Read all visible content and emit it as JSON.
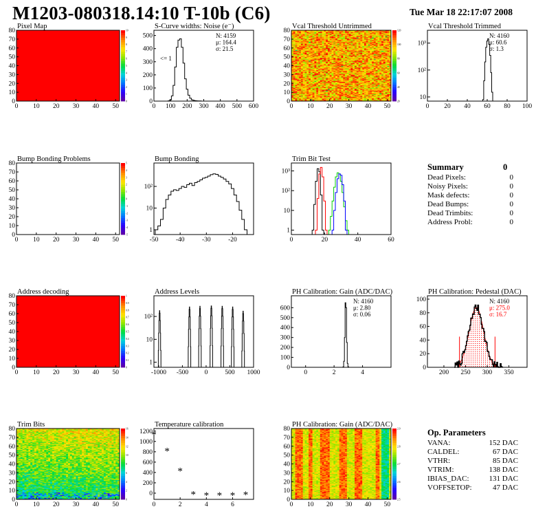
{
  "header": {
    "title": "M1203-080318.14:10 T-10b (C6)",
    "timestamp": "Tue Mar 18 22:17:07 2008"
  },
  "colors": {
    "red": "#ff0000",
    "histogram_line": "#000000",
    "trim_red": "#ff0000",
    "trim_green": "#00cc00",
    "trim_blue": "#0000ff",
    "pedestal_fit": "#ff0000"
  },
  "chart_data": [
    {
      "id": "pixel_map",
      "type": "heatmap",
      "title": "Pixel Map",
      "x_ticks": [
        "0",
        "10",
        "20",
        "30",
        "40",
        "50"
      ],
      "y_ticks": [
        "0",
        "10",
        "20",
        "30",
        "40",
        "50",
        "60",
        "70",
        "80"
      ],
      "xlim": [
        0,
        52
      ],
      "ylim": [
        0,
        80
      ],
      "fill": "uniform-max",
      "z_ticks": [
        "0",
        "1",
        "2",
        "3",
        "4",
        "5",
        "6",
        "7",
        "8",
        "9",
        "10"
      ]
    },
    {
      "id": "scurve",
      "type": "histogram",
      "title": "S-Curve widths: Noise (e⁻)",
      "x_ticks": [
        "0",
        "100",
        "200",
        "300",
        "400",
        "500",
        "600"
      ],
      "y_ticks": [
        "0",
        "100",
        "200",
        "300",
        "400",
        "500"
      ],
      "xlim": [
        0,
        600
      ],
      "ylim": [
        0,
        540
      ],
      "stats": [
        "N: 4159",
        "μ: 164.4",
        "σ: 21.5"
      ],
      "annotation": "<= 1",
      "x": [
        90,
        100,
        110,
        120,
        130,
        140,
        150,
        160,
        170,
        180,
        190,
        200,
        210,
        220,
        230,
        240,
        250,
        260,
        270,
        280,
        290,
        300
      ],
      "y": [
        2,
        10,
        40,
        120,
        260,
        410,
        465,
        475,
        410,
        290,
        170,
        90,
        45,
        22,
        10,
        6,
        3,
        2,
        1,
        1,
        0,
        0
      ]
    },
    {
      "id": "vcal_untrimmed",
      "type": "heatmap",
      "title": "Vcal Threshold Untrimmed",
      "x_ticks": [
        "0",
        "10",
        "20",
        "30",
        "40",
        "50"
      ],
      "y_ticks": [
        "0",
        "10",
        "20",
        "30",
        "40",
        "50",
        "60",
        "70",
        "80"
      ],
      "xlim": [
        0,
        52
      ],
      "ylim": [
        0,
        80
      ],
      "fill": "noisy-high",
      "z_ticks": [
        "20",
        "40",
        "60",
        "80",
        "100",
        "120"
      ]
    },
    {
      "id": "vcal_trimmed",
      "type": "histogram",
      "title": "Vcal Threshold Trimmed",
      "log_y": true,
      "x_ticks": [
        "0",
        "20",
        "40",
        "60",
        "80",
        "100"
      ],
      "y_tick_labels": [
        "10",
        "10²",
        "10³"
      ],
      "y_tick_values": [
        10,
        100,
        1000
      ],
      "xlim": [
        0,
        100
      ],
      "ylim": [
        7,
        3000
      ],
      "stats": [
        "N: 4160",
        "μ: 60.6",
        "σ:  1.3"
      ],
      "x": [
        55,
        56,
        57,
        58,
        59,
        60,
        61,
        62,
        63,
        64,
        65,
        66
      ],
      "y": [
        0,
        8,
        40,
        200,
        700,
        1200,
        1450,
        900,
        350,
        80,
        15,
        0
      ]
    },
    {
      "id": "bump_problems",
      "type": "heatmap",
      "title": "Bump Bonding Problems",
      "x_ticks": [
        "0",
        "10",
        "20",
        "30",
        "40",
        "50"
      ],
      "y_ticks": [
        "0",
        "10",
        "20",
        "30",
        "40",
        "50",
        "60",
        "70",
        "80"
      ],
      "xlim": [
        0,
        52
      ],
      "ylim": [
        0,
        80
      ],
      "fill": "empty",
      "z_ticks": [
        "-5",
        "-4",
        "-3",
        "-2",
        "-1",
        "0",
        "1",
        "2",
        "3",
        "4",
        "5"
      ]
    },
    {
      "id": "bump_bonding",
      "type": "histogram",
      "title": "Bump Bonding",
      "log_y": true,
      "x_ticks": [
        "-50",
        "-40",
        "-30",
        "-20"
      ],
      "y_tick_labels": [
        "1",
        "10",
        "10²"
      ],
      "y_tick_values": [
        1,
        10,
        100
      ],
      "xlim": [
        -50,
        -12
      ],
      "ylim": [
        0.6,
        1200
      ],
      "x": [
        -49,
        -48,
        -47,
        -46,
        -45,
        -44,
        -43,
        -42,
        -41,
        -40,
        -39,
        -38,
        -37,
        -36,
        -35,
        -34,
        -33,
        -32,
        -31,
        -30,
        -29,
        -28,
        -27,
        -26,
        -25,
        -24,
        -23,
        -22,
        -21,
        -20,
        -19,
        -18,
        -17,
        -16,
        -15
      ],
      "y": [
        1,
        1.5,
        3,
        10,
        25,
        40,
        60,
        70,
        65,
        80,
        100,
        90,
        120,
        140,
        110,
        150,
        170,
        200,
        240,
        260,
        300,
        350,
        380,
        360,
        300,
        260,
        220,
        170,
        130,
        80,
        40,
        20,
        8,
        3,
        1
      ]
    },
    {
      "id": "trim_bit_test",
      "type": "histogram",
      "title": "Trim Bit Test",
      "log_y": true,
      "x_ticks": [
        "0",
        "20",
        "40",
        "60"
      ],
      "y_tick_labels": [
        "1",
        "10",
        "10²",
        "10³"
      ],
      "y_tick_values": [
        1,
        10,
        100,
        1000
      ],
      "xlim": [
        0,
        60
      ],
      "ylim": [
        0.6,
        2500
      ],
      "series": [
        {
          "color": "#000000",
          "x": [
            13,
            14,
            15,
            16,
            17,
            18,
            19
          ],
          "y": [
            1,
            20,
            300,
            1300,
            900,
            60,
            1
          ]
        },
        {
          "color": "#ff0000",
          "x": [
            15,
            16,
            17,
            18,
            19,
            20,
            21
          ],
          "y": [
            1,
            40,
            700,
            1500,
            500,
            30,
            1
          ]
        },
        {
          "color": "#00cc00",
          "x": [
            23,
            24,
            25,
            26,
            27,
            28,
            29,
            30,
            31,
            32,
            33,
            34
          ],
          "y": [
            1,
            5,
            30,
            150,
            500,
            800,
            700,
            300,
            80,
            15,
            3,
            1
          ]
        },
        {
          "color": "#0000ff",
          "x": [
            25,
            26,
            27,
            28,
            29,
            30,
            31,
            32,
            33
          ],
          "y": [
            1,
            10,
            80,
            400,
            700,
            600,
            200,
            30,
            1
          ]
        }
      ]
    },
    {
      "id": "address_decoding",
      "type": "heatmap",
      "title": "Address decoding",
      "x_ticks": [
        "0",
        "10",
        "20",
        "30",
        "40",
        "50"
      ],
      "y_ticks": [
        "0",
        "10",
        "20",
        "30",
        "40",
        "50",
        "60",
        "70",
        "80"
      ],
      "xlim": [
        0,
        52
      ],
      "ylim": [
        0,
        80
      ],
      "fill": "uniform-max",
      "z_ticks": [
        "0",
        "0.1",
        "0.2",
        "0.3",
        "0.4",
        "0.5",
        "0.6",
        "0.7",
        "0.8",
        "0.9",
        "1"
      ]
    },
    {
      "id": "address_levels",
      "type": "histogram",
      "title": "Address Levels",
      "log_y": true,
      "x_ticks": [
        "-1000",
        "-500",
        "0",
        "500",
        "1000"
      ],
      "y_tick_labels": [
        "1",
        "10",
        "10²"
      ],
      "y_tick_values": [
        1,
        10,
        100
      ],
      "xlim": [
        -1100,
        1000
      ],
      "ylim": [
        0.6,
        800
      ],
      "peaks": [
        [
          -980,
          180
        ],
        [
          -350,
          260
        ],
        [
          -130,
          280
        ],
        [
          110,
          290
        ],
        [
          340,
          280
        ],
        [
          560,
          260
        ],
        [
          780,
          170
        ]
      ]
    },
    {
      "id": "ph_gain",
      "type": "histogram",
      "title": "PH Calibration: Gain (ADC/DAC)",
      "x_ticks": [
        "0",
        "2",
        "4"
      ],
      "y_ticks": [
        "0",
        "100",
        "200",
        "300",
        "400",
        "500",
        "600"
      ],
      "xlim": [
        -1,
        6
      ],
      "ylim": [
        0,
        720
      ],
      "stats": [
        "N: 4160",
        "μ: 2.80",
        "σ: 0.06"
      ],
      "x": [
        2.6,
        2.65,
        2.7,
        2.75,
        2.8,
        2.85,
        2.9,
        2.95,
        3.0,
        3.05
      ],
      "y": [
        0,
        5,
        60,
        300,
        650,
        600,
        250,
        40,
        5,
        0
      ]
    },
    {
      "id": "ph_pedestal",
      "type": "histogram",
      "title": "PH Calibration: Pedestal (DAC)",
      "x_ticks": [
        "200",
        "250",
        "300",
        "350"
      ],
      "y_ticks": [
        "0",
        "20",
        "40",
        "60",
        "80",
        "100"
      ],
      "xlim": [
        162,
        392
      ],
      "ylim": [
        0,
        105
      ],
      "stats": [
        {
          "text": "N: 4160",
          "color": "#000000"
        },
        {
          "text": "μ: 275.0",
          "color": "#ff0000"
        },
        {
          "text": "σ: 16.7",
          "color": "#ff0000"
        }
      ],
      "fit": {
        "mean": 275.0,
        "sigma": 16.7,
        "amp": 88,
        "range": [
          236,
          318
        ]
      },
      "noise_seed": 7
    },
    {
      "id": "trim_bits",
      "type": "heatmap",
      "title": "Trim Bits",
      "x_ticks": [
        "0",
        "10",
        "20",
        "30",
        "40",
        "50"
      ],
      "y_ticks": [
        "0",
        "10",
        "20",
        "30",
        "40",
        "50",
        "60",
        "70",
        "80"
      ],
      "xlim": [
        0,
        52
      ],
      "ylim": [
        0,
        80
      ],
      "fill": "trim-bits",
      "z_ticks": [
        "0",
        "2",
        "4",
        "6",
        "8",
        "10",
        "12",
        "14",
        "16"
      ]
    },
    {
      "id": "temperature",
      "type": "scatter",
      "title": "Temperature calibration",
      "x_ticks": [
        "0",
        "2",
        "4",
        "6"
      ],
      "y_ticks": [
        "0",
        "200",
        "400",
        "600",
        "800",
        "1000",
        "1200"
      ],
      "xlim": [
        0,
        7.6
      ],
      "ylim": [
        -120,
        1250
      ],
      "marker": "*",
      "x": [
        0,
        1,
        2,
        3,
        4,
        5,
        6,
        7
      ],
      "y": [
        1140,
        820,
        430,
        -20,
        -40,
        -40,
        -40,
        -30
      ]
    },
    {
      "id": "ph_gain_map",
      "type": "heatmap",
      "title": "PH Calibration: Gain (ADC/DAC)",
      "x_ticks": [
        "0",
        "10",
        "20",
        "30",
        "40",
        "50"
      ],
      "y_ticks": [
        "0",
        "10",
        "20",
        "30",
        "40",
        "50",
        "60",
        "70",
        "80"
      ],
      "xlim": [
        0,
        52
      ],
      "ylim": [
        0,
        80
      ],
      "fill": "gain-columns",
      "z_ticks": [
        "2.5",
        "2.6",
        "2.7",
        "2.8",
        "2.9"
      ]
    }
  ],
  "summary": {
    "title": "Summary",
    "total": "0",
    "rows": [
      {
        "label": "Dead Pixels:",
        "value": "0"
      },
      {
        "label": "Noisy Pixels:",
        "value": "0"
      },
      {
        "label": "Mask defects:",
        "value": "0"
      },
      {
        "label": "Dead Bumps:",
        "value": "0"
      },
      {
        "label": "Dead Trimbits:",
        "value": "0"
      },
      {
        "label": "Address Probl:",
        "value": "0"
      }
    ]
  },
  "op_params": {
    "title": "Op. Parameters",
    "rows": [
      {
        "label": "VANA:",
        "value": "152 DAC"
      },
      {
        "label": "CALDEL:",
        "value": "67 DAC"
      },
      {
        "label": "VTHR:",
        "value": "85 DAC"
      },
      {
        "label": "VTRIM:",
        "value": "138 DAC"
      },
      {
        "label": "IBIAS_DAC:",
        "value": "131 DAC"
      },
      {
        "label": "VOFFSETOP:",
        "value": "47 DAC"
      }
    ]
  }
}
